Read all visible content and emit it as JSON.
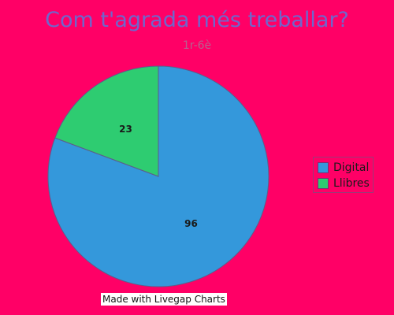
{
  "chart_data": {
    "type": "pie",
    "title": "Com t'agrada més treballar?",
    "subtitle": "1r-6è",
    "categories": [
      "Digital",
      "Llibres"
    ],
    "values": [
      96,
      23
    ],
    "colors": [
      "#3498db",
      "#2ecc71"
    ],
    "legend": "right"
  },
  "credit": "Made with Livegap Charts"
}
